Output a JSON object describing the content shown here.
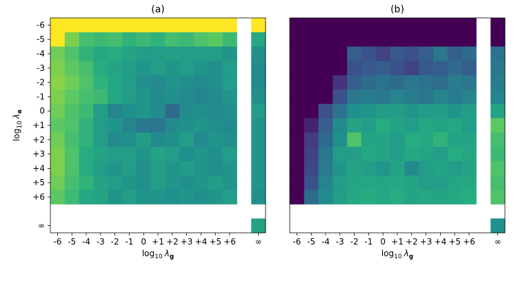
{
  "chart_data": [
    {
      "type": "heatmap",
      "title": "(a)",
      "xlabel_prefix": "log",
      "xlabel_sub": "10",
      "xlabel_sym": "λ",
      "xlabel_symsub": "g",
      "ylabel_prefix": "log",
      "ylabel_sub": "10",
      "ylabel_sym": "λ",
      "ylabel_symsub": "a",
      "x_tick_labels": [
        "-6",
        "-5",
        "-4",
        "-3",
        "-2",
        "-1",
        "0",
        "+1",
        "+2",
        "+3",
        "+4",
        "+5",
        "+6",
        "∞"
      ],
      "y_tick_labels": [
        "-6",
        "-5",
        "-4",
        "-3",
        "-2",
        "-1",
        "0",
        "+1",
        "+2",
        "+3",
        "+4",
        "+5",
        "+6",
        "∞"
      ],
      "x_values": [
        "-6",
        "-5",
        "-4",
        "-3",
        "-2",
        "-1",
        "0",
        "+1",
        "+2",
        "+3",
        "+4",
        "+5",
        "+6",
        "∞"
      ],
      "y_values": [
        "-6",
        "-5",
        "-4",
        "-3",
        "-2",
        "-1",
        "0",
        "+1",
        "+2",
        "+3",
        "+4",
        "+5",
        "+6",
        "∞"
      ],
      "colormap": "viridis",
      "value_scale": [
        0,
        1
      ],
      "values": [
        [
          1.0,
          1.0,
          1.0,
          1.0,
          1.0,
          1.0,
          1.0,
          1.0,
          1.0,
          1.0,
          1.0,
          1.0,
          1.0,
          1.0
        ],
        [
          1.0,
          0.8,
          0.7,
          0.68,
          0.7,
          0.65,
          0.68,
          0.65,
          0.7,
          0.68,
          0.72,
          0.75,
          0.68,
          0.6
        ],
        [
          0.78,
          0.72,
          0.65,
          0.6,
          0.62,
          0.58,
          0.55,
          0.55,
          0.56,
          0.55,
          0.55,
          0.55,
          0.52,
          0.5
        ],
        [
          0.8,
          0.75,
          0.7,
          0.62,
          0.58,
          0.55,
          0.52,
          0.55,
          0.52,
          0.55,
          0.52,
          0.5,
          0.55,
          0.48
        ],
        [
          0.82,
          0.78,
          0.72,
          0.65,
          0.6,
          0.55,
          0.5,
          0.48,
          0.52,
          0.5,
          0.48,
          0.5,
          0.55,
          0.48
        ],
        [
          0.8,
          0.75,
          0.7,
          0.68,
          0.6,
          0.55,
          0.52,
          0.48,
          0.5,
          0.48,
          0.45,
          0.48,
          0.52,
          0.5
        ],
        [
          0.78,
          0.72,
          0.68,
          0.55,
          0.45,
          0.5,
          0.52,
          0.48,
          0.35,
          0.48,
          0.5,
          0.48,
          0.5,
          0.55
        ],
        [
          0.75,
          0.72,
          0.65,
          0.55,
          0.52,
          0.45,
          0.4,
          0.4,
          0.48,
          0.5,
          0.52,
          0.5,
          0.48,
          0.52
        ],
        [
          0.78,
          0.7,
          0.65,
          0.55,
          0.48,
          0.5,
          0.55,
          0.48,
          0.5,
          0.55,
          0.48,
          0.52,
          0.5,
          0.52
        ],
        [
          0.8,
          0.72,
          0.62,
          0.58,
          0.55,
          0.55,
          0.52,
          0.58,
          0.55,
          0.5,
          0.52,
          0.5,
          0.55,
          0.52
        ],
        [
          0.8,
          0.72,
          0.62,
          0.55,
          0.52,
          0.55,
          0.5,
          0.55,
          0.52,
          0.55,
          0.52,
          0.5,
          0.52,
          0.52
        ],
        [
          0.78,
          0.7,
          0.65,
          0.58,
          0.55,
          0.52,
          0.5,
          0.55,
          0.52,
          0.5,
          0.52,
          0.55,
          0.52,
          0.52
        ],
        [
          0.75,
          0.68,
          0.6,
          0.58,
          0.52,
          0.55,
          0.52,
          0.52,
          0.5,
          0.52,
          0.5,
          0.52,
          0.55,
          0.5
        ],
        [
          null,
          null,
          null,
          null,
          null,
          null,
          null,
          null,
          null,
          null,
          null,
          null,
          null,
          0.58
        ]
      ]
    },
    {
      "type": "heatmap",
      "title": "(b)",
      "xlabel_prefix": "log",
      "xlabel_sub": "10",
      "xlabel_sym": "λ",
      "xlabel_symsub": "g",
      "x_tick_labels": [
        "-6",
        "-5",
        "-4",
        "-3",
        "-2",
        "-1",
        "0",
        "+1",
        "+2",
        "+3",
        "+4",
        "+5",
        "+6",
        "∞"
      ],
      "x_values": [
        "-6",
        "-5",
        "-4",
        "-3",
        "-2",
        "-1",
        "0",
        "+1",
        "+2",
        "+3",
        "+4",
        "+5",
        "+6",
        "∞"
      ],
      "y_values": [
        "-6",
        "-5",
        "-4",
        "-3",
        "-2",
        "-1",
        "0",
        "+1",
        "+2",
        "+3",
        "+4",
        "+5",
        "+6",
        "∞"
      ],
      "colormap": "viridis",
      "value_scale": [
        0,
        1
      ],
      "values": [
        [
          0.0,
          0.0,
          0.0,
          0.0,
          0.0,
          0.0,
          0.0,
          0.0,
          0.0,
          0.0,
          0.0,
          0.0,
          0.0,
          0.0
        ],
        [
          0.0,
          0.0,
          0.0,
          0.0,
          0.0,
          0.0,
          0.0,
          0.0,
          0.0,
          0.0,
          0.0,
          0.0,
          0.0,
          0.0
        ],
        [
          0.0,
          0.0,
          0.0,
          0.0,
          0.3,
          0.25,
          0.2,
          0.28,
          0.25,
          0.3,
          0.4,
          0.3,
          0.35,
          0.38
        ],
        [
          0.0,
          0.0,
          0.0,
          0.0,
          0.25,
          0.28,
          0.3,
          0.25,
          0.2,
          0.28,
          0.3,
          0.35,
          0.3,
          0.4
        ],
        [
          0.0,
          0.0,
          0.0,
          0.15,
          0.3,
          0.35,
          0.38,
          0.35,
          0.4,
          0.38,
          0.35,
          0.42,
          0.4,
          0.42
        ],
        [
          0.0,
          0.0,
          0.0,
          0.25,
          0.4,
          0.42,
          0.4,
          0.45,
          0.42,
          0.4,
          0.45,
          0.42,
          0.45,
          0.45
        ],
        [
          0.0,
          0.0,
          0.25,
          0.38,
          0.5,
          0.52,
          0.55,
          0.55,
          0.52,
          0.55,
          0.55,
          0.52,
          0.55,
          0.58
        ],
        [
          0.0,
          0.1,
          0.3,
          0.48,
          0.58,
          0.55,
          0.62,
          0.58,
          0.55,
          0.6,
          0.58,
          0.6,
          0.55,
          0.75
        ],
        [
          0.0,
          0.18,
          0.35,
          0.5,
          0.72,
          0.58,
          0.58,
          0.55,
          0.62,
          0.6,
          0.65,
          0.58,
          0.58,
          0.7
        ],
        [
          0.0,
          0.2,
          0.4,
          0.55,
          0.55,
          0.6,
          0.58,
          0.55,
          0.6,
          0.58,
          0.55,
          0.62,
          0.6,
          0.68
        ],
        [
          0.0,
          0.22,
          0.42,
          0.52,
          0.58,
          0.55,
          0.52,
          0.58,
          0.48,
          0.55,
          0.58,
          0.55,
          0.58,
          0.72
        ],
        [
          0.0,
          0.25,
          0.45,
          0.55,
          0.58,
          0.6,
          0.58,
          0.6,
          0.58,
          0.55,
          0.55,
          0.58,
          0.6,
          0.7
        ],
        [
          0.0,
          0.35,
          0.48,
          0.55,
          0.6,
          0.62,
          0.6,
          0.62,
          0.58,
          0.6,
          0.58,
          0.6,
          0.62,
          0.72
        ],
        [
          null,
          null,
          null,
          null,
          null,
          null,
          null,
          null,
          null,
          null,
          null,
          null,
          null,
          0.5
        ]
      ]
    }
  ]
}
